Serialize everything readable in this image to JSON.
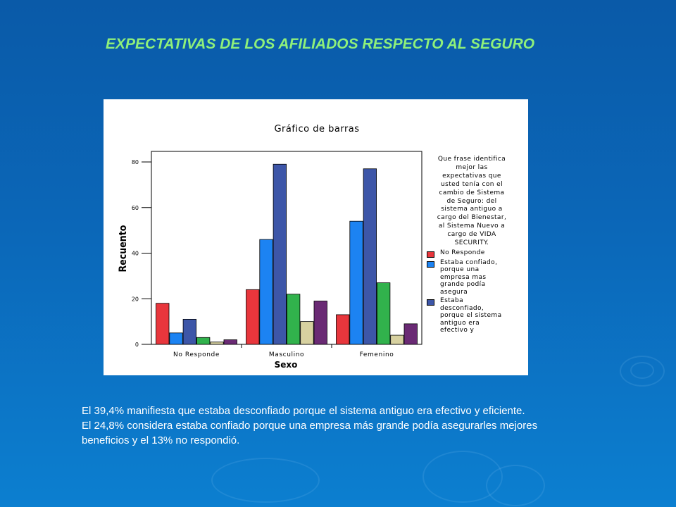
{
  "slide": {
    "title": "EXPECTATIVAS DE LOS AFILIADOS RESPECTO AL SEGURO",
    "summary_lines": [
      "El 39,4% manifiesta que estaba desconfiado porque el sistema antiguo era efectivo y eficiente.",
      "El 24,8% considera estaba confiado porque una empresa más grande podía asegurarles mejores",
      "beneficios y el 13% no respondió."
    ]
  },
  "chart_data": {
    "type": "bar",
    "title": "Gráfico de barras",
    "xlabel": "Sexo",
    "ylabel": "Recuento",
    "ylim": [
      0,
      80
    ],
    "yticks": [
      0,
      20,
      40,
      60,
      80
    ],
    "categories": [
      "No Responde",
      "Masculino",
      "Femenino"
    ],
    "legend_title": "Que frase identifica\nmejor las\nexpectativas que\nusted tenía con el\ncambio de Sistema\nde Seguro: del\nsistema antiguo a\ncargo del Bienestar,\nal Sistema Nuevo a\ncargo de VIDA\nSECURITY.",
    "legend_position": "right",
    "grid": false,
    "series": [
      {
        "name": "No Responde",
        "color": "#e8363c",
        "values": [
          18,
          24,
          13
        ]
      },
      {
        "name": "Estaba confiado,\nporque una\nempresa mas\ngrande podía\nasegura",
        "color": "#1c83f2",
        "values": [
          5,
          46,
          54
        ]
      },
      {
        "name": "Estaba\ndesconfiado,\nporque el sistema\nantiguo era\nefectivo y",
        "color": "#3d56a8",
        "values": [
          11,
          79,
          77
        ]
      },
      {
        "name": "",
        "color": "#31b24c",
        "values": [
          3,
          22,
          27
        ]
      },
      {
        "name": "",
        "color": "#d7d1a0",
        "values": [
          1,
          10,
          4
        ]
      },
      {
        "name": "",
        "color": "#6a2a74",
        "values": [
          2,
          19,
          9
        ]
      }
    ]
  }
}
